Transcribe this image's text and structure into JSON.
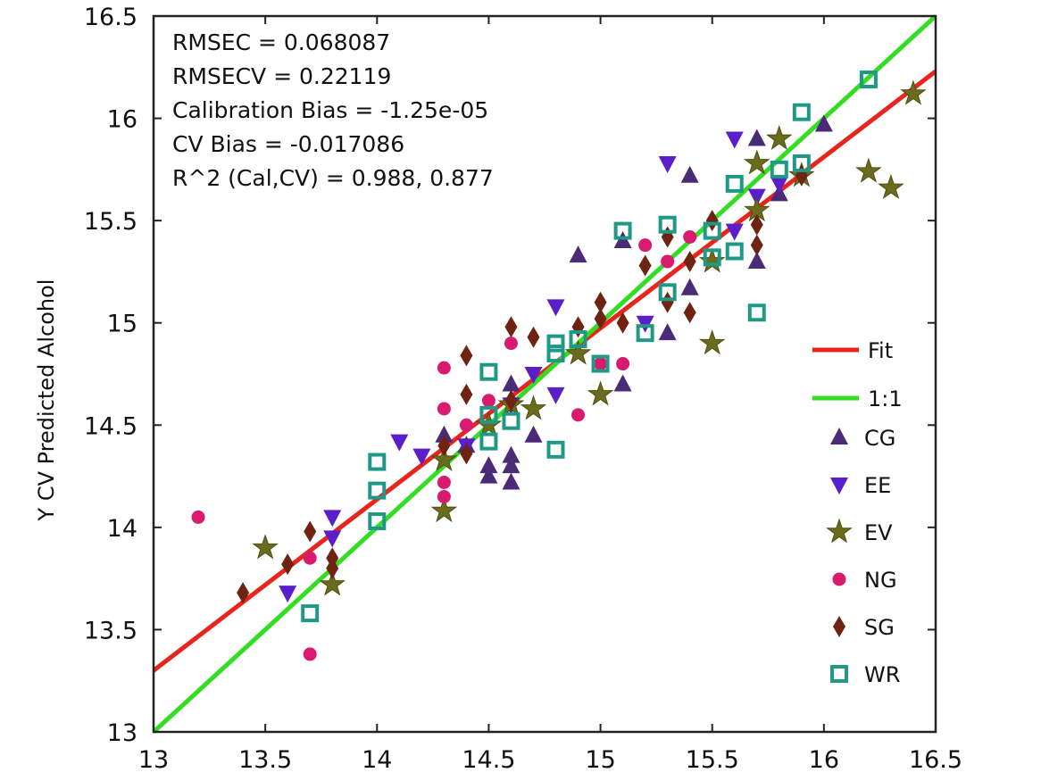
{
  "chart_data": {
    "type": "scatter",
    "title": "",
    "xlabel": "",
    "ylabel": "Y CV Predicted Alcohol",
    "xlim": [
      13,
      16.5
    ],
    "ylim": [
      13,
      16.5
    ],
    "x_ticks": [
      13,
      13.5,
      14,
      14.5,
      15,
      15.5,
      16,
      16.5
    ],
    "y_ticks": [
      13,
      13.5,
      14,
      14.5,
      15,
      15.5,
      16,
      16.5
    ],
    "x_tick_labels": [
      "13",
      "13.5",
      "14",
      "14.5",
      "15",
      "15.5",
      "16",
      "16.5"
    ],
    "y_tick_labels": [
      "13",
      "13.5",
      "14",
      "14.5",
      "15",
      "15.5",
      "16",
      "16.5"
    ],
    "grid": false,
    "legend_position": "right",
    "stats": [
      "RMSEC = 0.068087",
      "RMSECV = 0.22119",
      "Calibration Bias = -1.25e-05",
      "CV Bias = -0.017086",
      "R^2 (Cal,CV) = 0.988, 0.877"
    ],
    "lines": [
      {
        "name": "Fit",
        "color": "#e8241c",
        "points": [
          [
            13,
            13.3
          ],
          [
            16.5,
            16.23
          ]
        ]
      },
      {
        "name": "1:1",
        "color": "#33dd22",
        "points": [
          [
            13,
            13
          ],
          [
            16.5,
            16.5
          ]
        ]
      }
    ],
    "series": [
      {
        "name": "CG",
        "marker": "triangle-up",
        "color": "#4b2a78",
        "points": [
          [
            14.3,
            14.45
          ],
          [
            14.4,
            14.4
          ],
          [
            14.5,
            14.25
          ],
          [
            14.5,
            14.3
          ],
          [
            14.6,
            14.22
          ],
          [
            14.6,
            14.3
          ],
          [
            14.6,
            14.35
          ],
          [
            14.6,
            14.7
          ],
          [
            14.7,
            14.45
          ],
          [
            14.9,
            15.33
          ],
          [
            15.1,
            14.7
          ],
          [
            15.1,
            15.4
          ],
          [
            15.3,
            14.95
          ],
          [
            15.4,
            15.17
          ],
          [
            15.4,
            15.72
          ],
          [
            15.7,
            15.3
          ],
          [
            15.7,
            15.9
          ],
          [
            16.0,
            15.97
          ],
          [
            15.8,
            15.63
          ]
        ]
      },
      {
        "name": "EE",
        "marker": "triangle-down",
        "color": "#5a1fc8",
        "points": [
          [
            13.6,
            13.68
          ],
          [
            13.8,
            13.95
          ],
          [
            13.8,
            14.05
          ],
          [
            14.1,
            14.42
          ],
          [
            14.2,
            14.35
          ],
          [
            14.4,
            14.4
          ],
          [
            14.6,
            14.6
          ],
          [
            14.7,
            14.75
          ],
          [
            14.8,
            14.65
          ],
          [
            14.8,
            15.08
          ],
          [
            15.2,
            15.0
          ],
          [
            15.3,
            15.78
          ],
          [
            15.6,
            15.45
          ],
          [
            15.6,
            15.9
          ],
          [
            15.7,
            15.62
          ],
          [
            15.8,
            15.68
          ]
        ]
      },
      {
        "name": "EV",
        "marker": "star",
        "color": "#6b6b1e",
        "points": [
          [
            13.5,
            13.9
          ],
          [
            13.8,
            13.72
          ],
          [
            14.3,
            14.08
          ],
          [
            14.3,
            14.33
          ],
          [
            14.5,
            14.5
          ],
          [
            14.6,
            14.6
          ],
          [
            14.7,
            14.58
          ],
          [
            14.9,
            14.85
          ],
          [
            15.0,
            14.65
          ],
          [
            15.5,
            14.9
          ],
          [
            15.5,
            15.3
          ],
          [
            15.7,
            15.55
          ],
          [
            15.7,
            15.78
          ],
          [
            15.8,
            15.9
          ],
          [
            15.9,
            15.72
          ],
          [
            16.2,
            15.74
          ],
          [
            16.3,
            15.66
          ],
          [
            16.4,
            16.12
          ]
        ]
      },
      {
        "name": "NG",
        "marker": "circle",
        "color": "#d81b6f",
        "points": [
          [
            13.2,
            14.05
          ],
          [
            13.7,
            13.38
          ],
          [
            13.7,
            13.85
          ],
          [
            14.3,
            14.15
          ],
          [
            14.3,
            14.22
          ],
          [
            14.3,
            14.58
          ],
          [
            14.3,
            14.78
          ],
          [
            14.4,
            14.5
          ],
          [
            14.5,
            14.62
          ],
          [
            14.6,
            14.9
          ],
          [
            14.9,
            14.55
          ],
          [
            15.0,
            14.8
          ],
          [
            15.1,
            14.8
          ],
          [
            15.2,
            15.38
          ],
          [
            15.3,
            15.3
          ],
          [
            15.4,
            15.42
          ]
        ]
      },
      {
        "name": "SG",
        "marker": "diamond",
        "color": "#6e2410",
        "points": [
          [
            13.4,
            13.68
          ],
          [
            13.6,
            13.82
          ],
          [
            13.7,
            13.98
          ],
          [
            13.8,
            13.8
          ],
          [
            13.8,
            13.85
          ],
          [
            14.3,
            14.4
          ],
          [
            14.4,
            14.36
          ],
          [
            14.4,
            14.65
          ],
          [
            14.4,
            14.84
          ],
          [
            14.6,
            14.62
          ],
          [
            14.6,
            14.98
          ],
          [
            14.7,
            14.93
          ],
          [
            14.9,
            14.98
          ],
          [
            15.0,
            15.1
          ],
          [
            15.0,
            15.02
          ],
          [
            15.1,
            15.0
          ],
          [
            15.2,
            15.28
          ],
          [
            15.3,
            15.1
          ],
          [
            15.3,
            15.42
          ],
          [
            15.4,
            15.05
          ],
          [
            15.4,
            15.3
          ],
          [
            15.5,
            15.5
          ],
          [
            15.7,
            15.38
          ],
          [
            15.7,
            15.48
          ],
          [
            15.9,
            15.72
          ]
        ]
      },
      {
        "name": "WR",
        "marker": "square",
        "color": "#1f9985",
        "points": [
          [
            13.7,
            13.58
          ],
          [
            14.0,
            14.03
          ],
          [
            14.0,
            14.18
          ],
          [
            14.0,
            14.32
          ],
          [
            14.5,
            14.42
          ],
          [
            14.5,
            14.55
          ],
          [
            14.5,
            14.76
          ],
          [
            14.6,
            14.52
          ],
          [
            14.8,
            14.38
          ],
          [
            14.8,
            14.85
          ],
          [
            14.8,
            14.9
          ],
          [
            14.9,
            14.92
          ],
          [
            15.0,
            14.8
          ],
          [
            15.1,
            15.45
          ],
          [
            15.2,
            14.95
          ],
          [
            15.3,
            15.15
          ],
          [
            15.3,
            15.48
          ],
          [
            15.5,
            15.32
          ],
          [
            15.5,
            15.45
          ],
          [
            15.6,
            15.35
          ],
          [
            15.6,
            15.68
          ],
          [
            15.7,
            15.05
          ],
          [
            15.8,
            15.75
          ],
          [
            15.9,
            15.78
          ],
          [
            15.9,
            16.03
          ],
          [
            16.2,
            16.19
          ]
        ]
      }
    ]
  }
}
